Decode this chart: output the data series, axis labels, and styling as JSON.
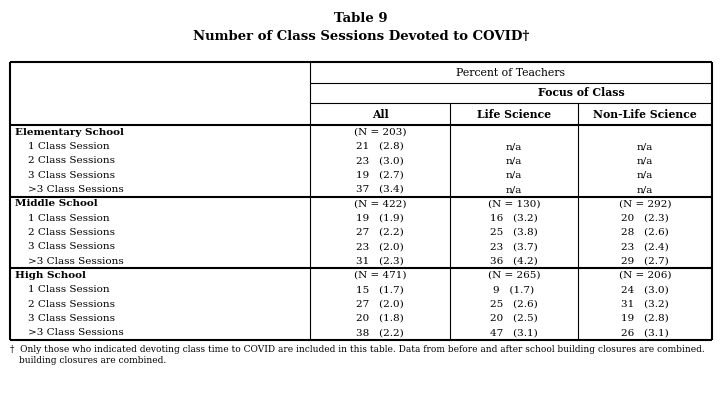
{
  "title_line1": "Table 9",
  "title_line2": "Number of Class Sessions Devoted to COVID†",
  "footnote_dagger": "†",
  "footnote_text": "  Only those who indicated devoting class time to COVID are included in this table. Data from before and after school building closures are combined.",
  "col_headers": {
    "span_header": "Percent of Teachers",
    "focus_header": "Focus of Class",
    "col1": "All",
    "col2": "Life Science",
    "col3": "Non-Life Science"
  },
  "rows": [
    {
      "label": "Elementary School",
      "bold": true,
      "all": "(N = 203)",
      "life": "",
      "nonlife": ""
    },
    {
      "label": "1 Class Session",
      "bold": false,
      "all": "21   (2.8)",
      "life": "n/a",
      "nonlife": "n/a"
    },
    {
      "label": "2 Class Sessions",
      "bold": false,
      "all": "23   (3.0)",
      "life": "n/a",
      "nonlife": "n/a"
    },
    {
      "label": "3 Class Sessions",
      "bold": false,
      "all": "19   (2.7)",
      "life": "n/a",
      "nonlife": "n/a"
    },
    {
      "label": ">3 Class Sessions",
      "bold": false,
      "all": "37   (3.4)",
      "life": "n/a",
      "nonlife": "n/a"
    },
    {
      "label": "Middle School",
      "bold": true,
      "all": "(N = 422)",
      "life": "(N = 130)",
      "nonlife": "(N = 292)"
    },
    {
      "label": "1 Class Session",
      "bold": false,
      "all": "19   (1.9)",
      "life": "16   (3.2)",
      "nonlife": "20   (2.3)"
    },
    {
      "label": "2 Class Sessions",
      "bold": false,
      "all": "27   (2.2)",
      "life": "25   (3.8)",
      "nonlife": "28   (2.6)"
    },
    {
      "label": "3 Class Sessions",
      "bold": false,
      "all": "23   (2.0)",
      "life": "23   (3.7)",
      "nonlife": "23   (2.4)"
    },
    {
      "label": ">3 Class Sessions",
      "bold": false,
      "all": "31   (2.3)",
      "life": "36   (4.2)",
      "nonlife": "29   (2.7)"
    },
    {
      "label": "High School",
      "bold": true,
      "all": "(N = 471)",
      "life": "(N = 265)",
      "nonlife": "(N = 206)"
    },
    {
      "label": "1 Class Session",
      "bold": false,
      "all": "15   (1.7)",
      "life": "9   (1.7)",
      "nonlife": "24   (3.0)"
    },
    {
      "label": "2 Class Sessions",
      "bold": false,
      "all": "27   (2.0)",
      "life": "25   (2.6)",
      "nonlife": "31   (3.2)"
    },
    {
      "label": "3 Class Sessions",
      "bold": false,
      "all": "20   (1.8)",
      "life": "20   (2.5)",
      "nonlife": "19   (2.8)"
    },
    {
      "label": ">3 Class Sessions",
      "bold": false,
      "all": "38   (2.2)",
      "life": "47   (3.1)",
      "nonlife": "26   (3.1)"
    }
  ],
  "section_divider_rows": [
    5,
    10
  ],
  "indent_rows": [
    1,
    2,
    3,
    4,
    6,
    7,
    8,
    9,
    11,
    12,
    13,
    14
  ],
  "bg_color": "#ffffff",
  "text_color": "#000000",
  "font_family": "DejaVu Serif"
}
